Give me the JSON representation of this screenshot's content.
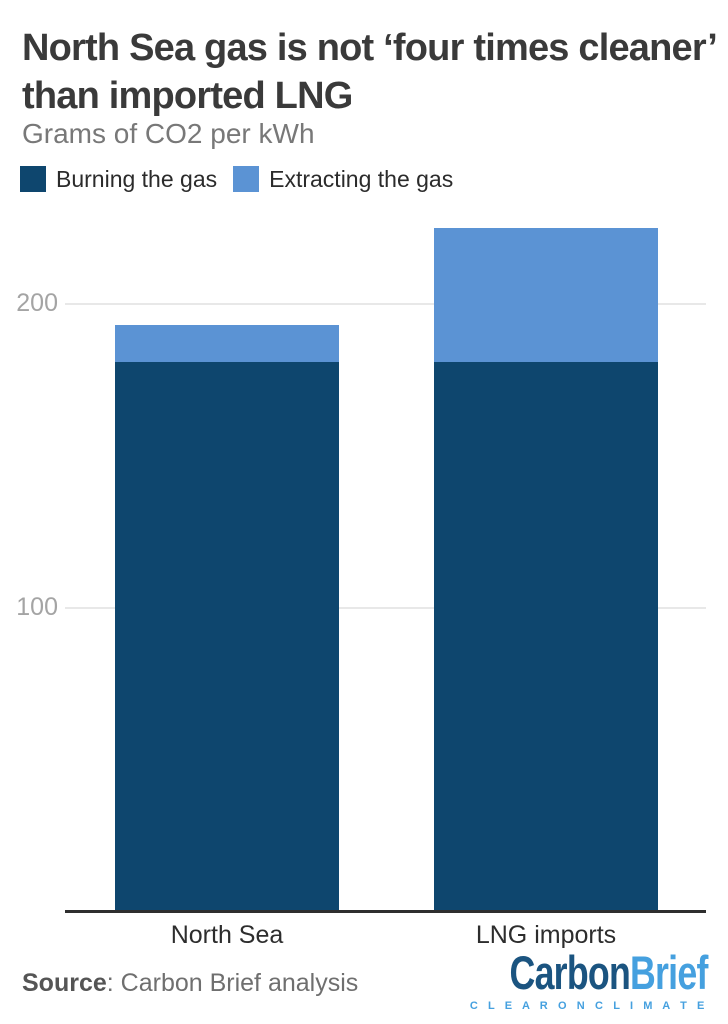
{
  "header": {
    "title_lines": [
      "North Sea gas is not ‘four times cleaner’",
      "than imported LNG"
    ],
    "subtitle": "Grams of CO2 per kWh"
  },
  "chart_data": {
    "type": "bar",
    "stacked": true,
    "title": "North Sea gas is not ‘four times cleaner’ than imported LNG",
    "subtitle_unit": "Grams of CO2 per kWh",
    "categories": [
      "North Sea",
      "LNG imports"
    ],
    "series": [
      {
        "name": "Burning the gas",
        "color": "#0E466E",
        "values": [
          181,
          181
        ]
      },
      {
        "name": "Extracting the gas",
        "color": "#5B93D4",
        "values": [
          12,
          44
        ]
      }
    ],
    "totals": [
      193,
      225
    ],
    "yticks": [
      200,
      100
    ],
    "ylim": [
      0,
      236
    ],
    "grid": "horizontal",
    "legend_position": "top-left",
    "colors": {
      "gridline": "#e8e8e8",
      "axis": "#2e2e2e",
      "tick_label": "#a4a4a4"
    }
  },
  "footer": {
    "source_label": "Source",
    "source_text": ": Carbon Brief analysis",
    "logo": {
      "part1": "Carbon",
      "part2": "Brief",
      "tagline": "C L E A R   O N   C L I M A T E",
      "color_dark": "#1B5480",
      "color_light": "#45A0DF"
    }
  }
}
